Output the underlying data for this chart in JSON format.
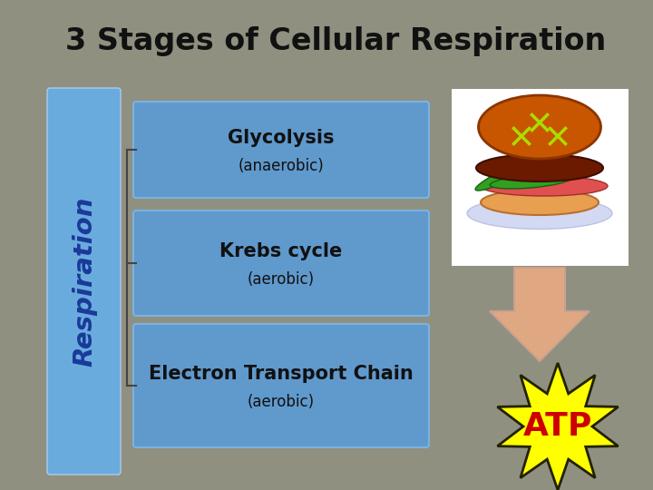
{
  "title": "3 Stages of Cellular Respiration",
  "title_fontsize": 24,
  "title_color": "#111111",
  "background_color": "#909080",
  "sidebar_color": "#6aabdd",
  "sidebar_text": "Respiration",
  "sidebar_text_color": "#1a3a9a",
  "box_color": "#5b9bd5",
  "box_border_color": "#7ab8e8",
  "stages": [
    {
      "main": "Glycolysis",
      "sub": "(anaerobic)"
    },
    {
      "main": "Krebs cycle",
      "sub": "(aerobic)"
    },
    {
      "main": "Electron Transport Chain",
      "sub": "(aerobic)"
    }
  ],
  "stage_text_color": "#111111",
  "arrow_color": "#e0a882",
  "arrow_border": "#c8a090",
  "atp_star_color": "#ffff00",
  "atp_star_border": "#222200",
  "atp_text_color": "#cc0000",
  "bracket_color": "#444444"
}
